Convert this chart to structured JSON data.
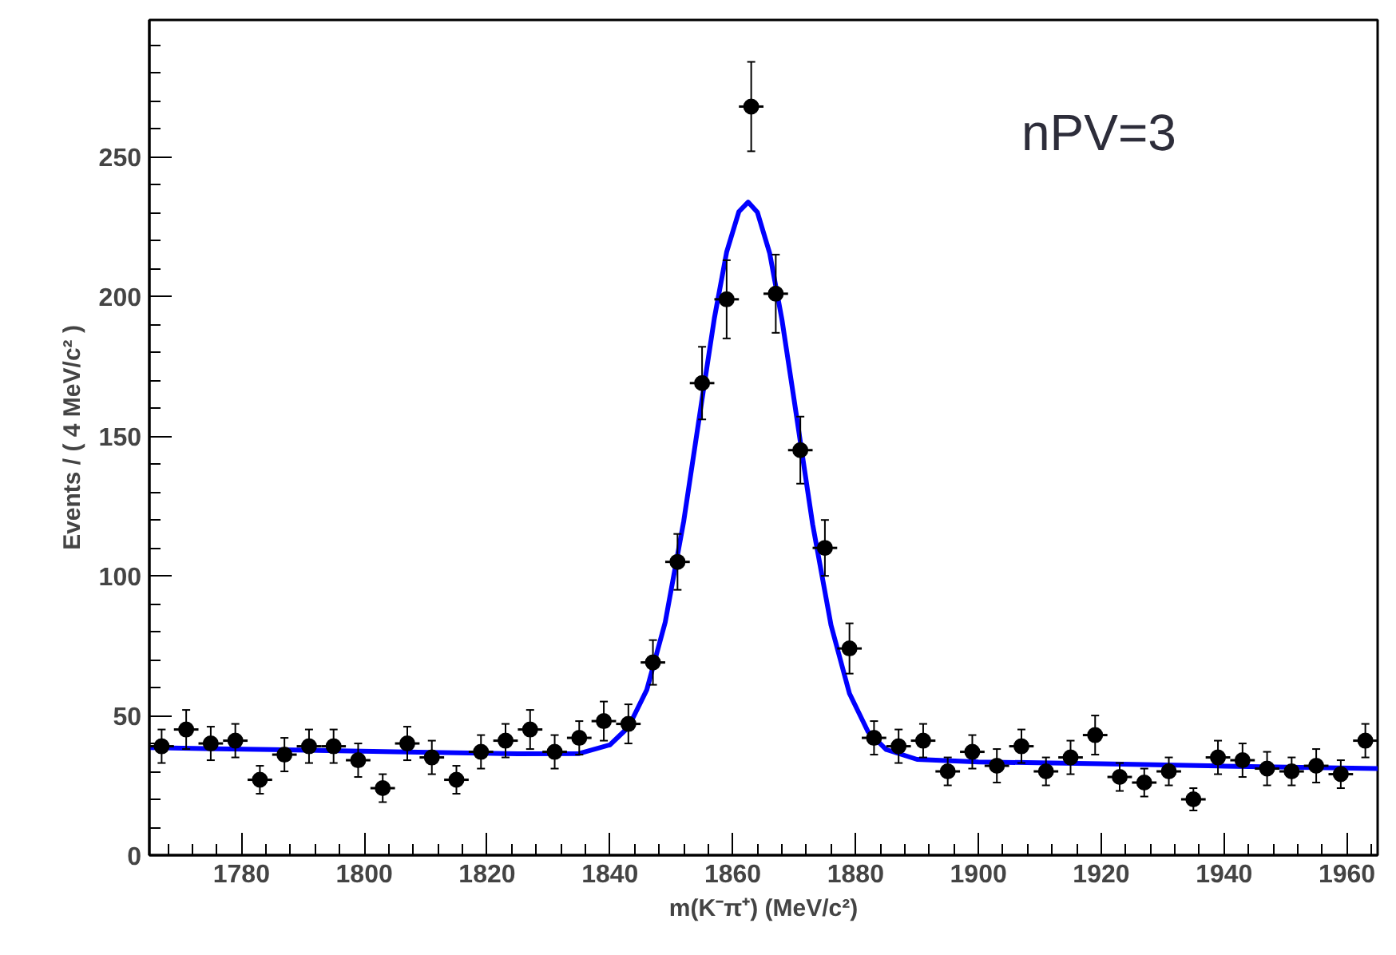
{
  "chart_data": {
    "type": "scatter",
    "xlabel": "m(K⁻π⁺) (MeV/c²)",
    "ylabel": "Events / ( 4 MeV/c² )",
    "annotations": [
      "nPV=3"
    ],
    "xlim": [
      1765,
      1965
    ],
    "xticks": [
      1780,
      1800,
      1820,
      1840,
      1860,
      1880,
      1900,
      1920,
      1940,
      1960
    ],
    "ylim": [
      0,
      299
    ],
    "yticks": [
      0,
      50,
      100,
      150,
      200,
      250
    ],
    "grid": false,
    "marker": "circle",
    "series": [
      {
        "color": "#000000",
        "x": [
          1767,
          1771,
          1775,
          1779,
          1783,
          1787,
          1791,
          1795,
          1799,
          1803,
          1807,
          1811,
          1815,
          1819,
          1823,
          1827,
          1831,
          1835,
          1839,
          1843,
          1847,
          1851,
          1855,
          1859,
          1863,
          1867,
          1871,
          1875,
          1879,
          1883,
          1887,
          1891,
          1895,
          1899,
          1903,
          1907,
          1911,
          1915,
          1919,
          1923,
          1927,
          1931,
          1935,
          1939,
          1943,
          1947,
          1951,
          1955,
          1959,
          1963
        ],
        "values": [
          39,
          45,
          40,
          41,
          27,
          36,
          39,
          39,
          34,
          24,
          40,
          35,
          27,
          37,
          41,
          45,
          37,
          42,
          48,
          47,
          69,
          105,
          169,
          199,
          268,
          201,
          145,
          110,
          74,
          42,
          39,
          41,
          30,
          37,
          32,
          39,
          30,
          35,
          43,
          28,
          26,
          30,
          20,
          35,
          34,
          31,
          30,
          32,
          29,
          41
        ],
        "errors": [
          6,
          7,
          6,
          6,
          5,
          6,
          6,
          6,
          6,
          5,
          6,
          6,
          5,
          6,
          6,
          7,
          6,
          6,
          7,
          7,
          8,
          10,
          13,
          14,
          16,
          14,
          12,
          10,
          9,
          6,
          6,
          6,
          5,
          6,
          6,
          6,
          5,
          6,
          7,
          5,
          5,
          5,
          4,
          6,
          6,
          6,
          5,
          6,
          5,
          6
        ],
        "xerrors": [
          2,
          2,
          2,
          2,
          2,
          2,
          2,
          2,
          2,
          2,
          2,
          2,
          2,
          2,
          2,
          2,
          2,
          2,
          2,
          2,
          2,
          2,
          2,
          2,
          2,
          2,
          2,
          2,
          2,
          2,
          2,
          2,
          2,
          2,
          2,
          2,
          2,
          2,
          2,
          2,
          2,
          2,
          2,
          2,
          2,
          2,
          2,
          2,
          2,
          2
        ]
      },
      {
        "type": "line",
        "color": "#0000ff",
        "marker": "none",
        "line_style": "solid",
        "x": [
          1765,
          1785,
          1805,
          1825,
          1835,
          1840,
          1843,
          1846,
          1849,
          1852,
          1855,
          1857,
          1859,
          1861,
          1862.5,
          1864,
          1866,
          1868,
          1870,
          1873,
          1876,
          1879,
          1882,
          1885,
          1890,
          1900,
          1920,
          1940,
          1965
        ],
        "values": [
          38.5,
          37.8,
          37.0,
          36.3,
          36.4,
          39.5,
          45.8,
          59.2,
          83.4,
          119.4,
          163.3,
          192.2,
          215.9,
          230.4,
          233.8,
          230.2,
          215.6,
          191.8,
          162.8,
          118.5,
          82.3,
          57.9,
          44.3,
          37.8,
          34.3,
          33.4,
          32.7,
          31.9,
          31.0
        ]
      }
    ]
  }
}
